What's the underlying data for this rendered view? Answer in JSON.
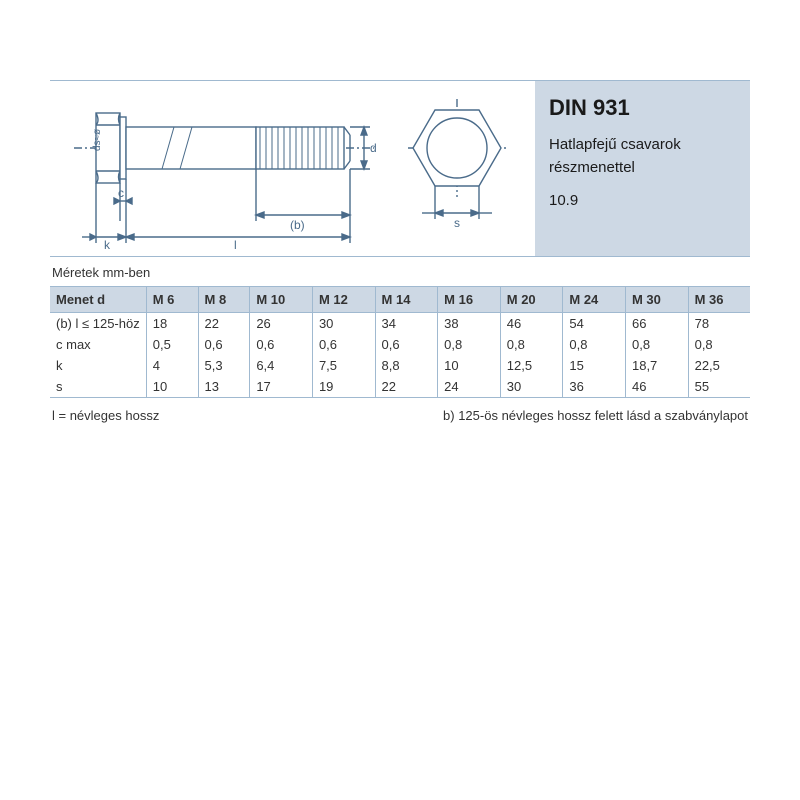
{
  "info": {
    "title": "DIN 931",
    "subtitle": "Hatlapfejű csavarok részmenettel",
    "grade": "10.9"
  },
  "units_label": "Méretek mm-ben",
  "diagram": {
    "stroke": "#4a6b8a",
    "labels": {
      "k": "k",
      "c": "c",
      "l": "l",
      "b": "(b)",
      "d": "d",
      "s": "s",
      "phi": "ds≈ø"
    }
  },
  "table": {
    "header_label": "Menet d",
    "columns": [
      "M 6",
      "M 8",
      "M 10",
      "M 12",
      "M 14",
      "M 16",
      "M 20",
      "M 24",
      "M 30",
      "M 36"
    ],
    "rows": [
      {
        "label": "(b) l ≤ 125-höz",
        "values": [
          "18",
          "22",
          "26",
          "30",
          "34",
          "38",
          "46",
          "54",
          "66",
          "78"
        ]
      },
      {
        "label": "c max",
        "values": [
          "0,5",
          "0,6",
          "0,6",
          "0,6",
          "0,6",
          "0,8",
          "0,8",
          "0,8",
          "0,8",
          "0,8"
        ]
      },
      {
        "label": "k",
        "values": [
          "4",
          "5,3",
          "6,4",
          "7,5",
          "8,8",
          "10",
          "12,5",
          "15",
          "18,7",
          "22,5"
        ]
      },
      {
        "label": "s",
        "values": [
          "10",
          "13",
          "17",
          "19",
          "22",
          "24",
          "30",
          "36",
          "46",
          "55"
        ]
      }
    ]
  },
  "footnotes": {
    "left": "l = névleges hossz",
    "right": "b) 125-ös névleges hossz felett lásd a szabványlapot"
  },
  "colors": {
    "panel_bg": "#cdd8e4",
    "rule": "#a0b9d0",
    "text": "#333333"
  }
}
